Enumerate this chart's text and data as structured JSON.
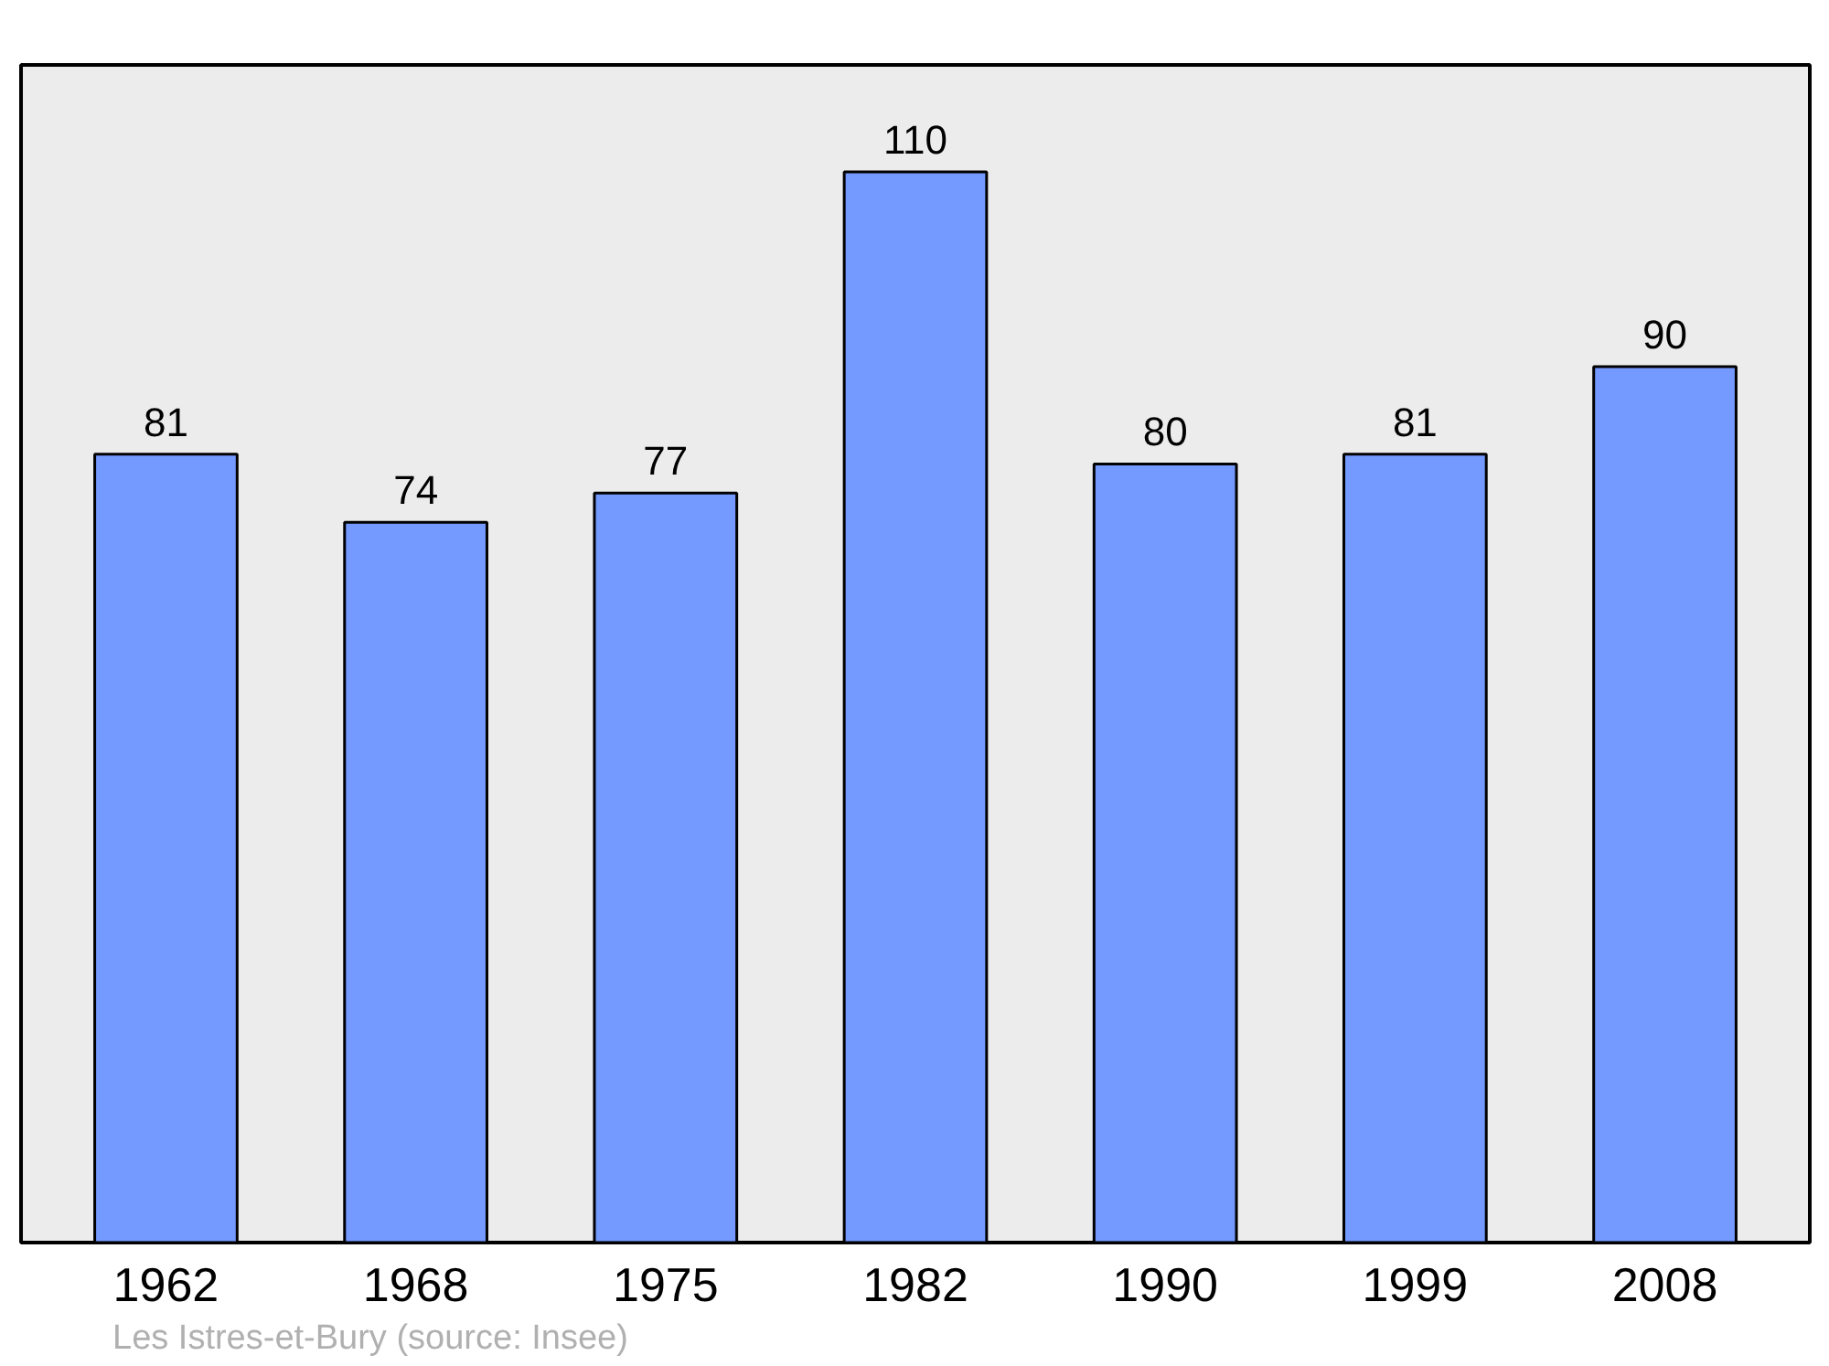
{
  "chart_data": {
    "type": "bar",
    "categories": [
      "1962",
      "1968",
      "1975",
      "1982",
      "1990",
      "1999",
      "2008"
    ],
    "values": [
      81,
      74,
      77,
      110,
      80,
      81,
      90
    ],
    "color": "#7499ff",
    "data_labels": true,
    "grid": false,
    "tick_labels": "x",
    "annotations": [
      "Les Istres-et-Bury    (source: Insee)"
    ]
  }
}
